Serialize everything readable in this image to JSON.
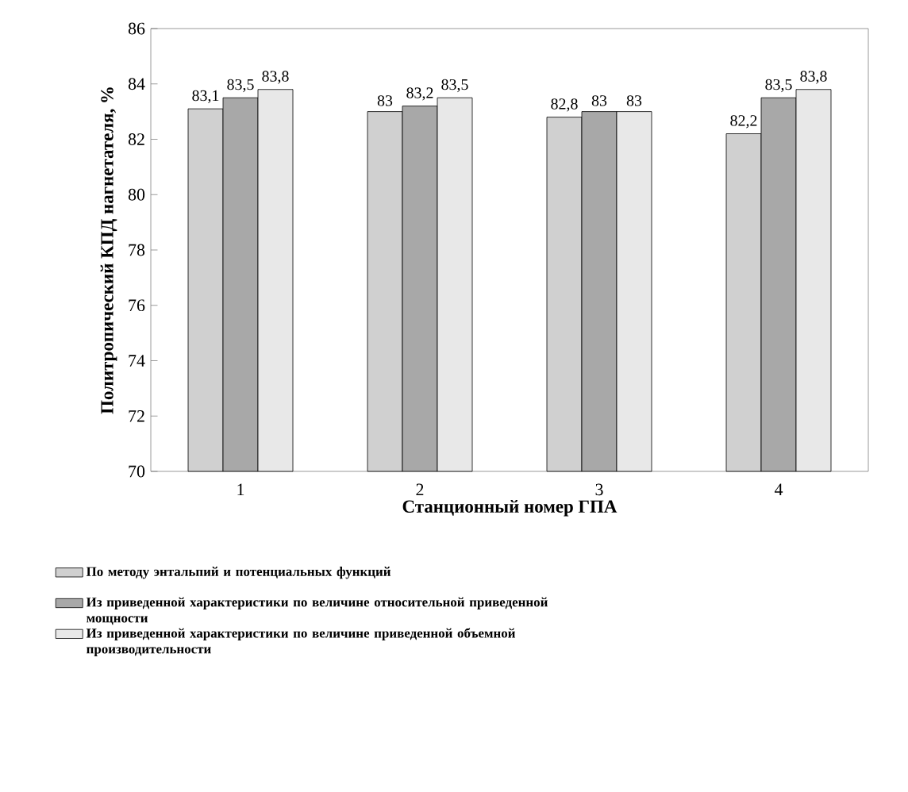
{
  "chart_data": {
    "type": "bar",
    "ylabel": "Политропический КПД нагнетателя, %",
    "xlabel": "Станционный номер ГПА",
    "categories": [
      "1",
      "2",
      "3",
      "4"
    ],
    "series": [
      {
        "name": "По методу энтальпий и потенциальных функций",
        "color": "#d0d0d0",
        "values": [
          83.1,
          83,
          82.8,
          82.2
        ],
        "value_labels": [
          "83,1",
          "83",
          "82,8",
          "82,2"
        ]
      },
      {
        "name": "Из приведенной характеристики по величине относительной приведенной мощности",
        "color": "#a8a8a8",
        "values": [
          83.5,
          83.2,
          83,
          83.5
        ],
        "value_labels": [
          "83,5",
          "83,2",
          "83",
          "83,5"
        ]
      },
      {
        "name": "Из приведенной характеристики по величине приведенной объемной производительности",
        "color": "#e8e8e8",
        "values": [
          83.8,
          83.5,
          83,
          83.8
        ],
        "value_labels": [
          "83,8",
          "83,5",
          "83",
          "83,8"
        ]
      }
    ],
    "ylim": [
      70,
      86
    ],
    "yticks": [
      70,
      72,
      74,
      76,
      78,
      80,
      82,
      84,
      86
    ],
    "legend": "bottom",
    "grid": false
  }
}
